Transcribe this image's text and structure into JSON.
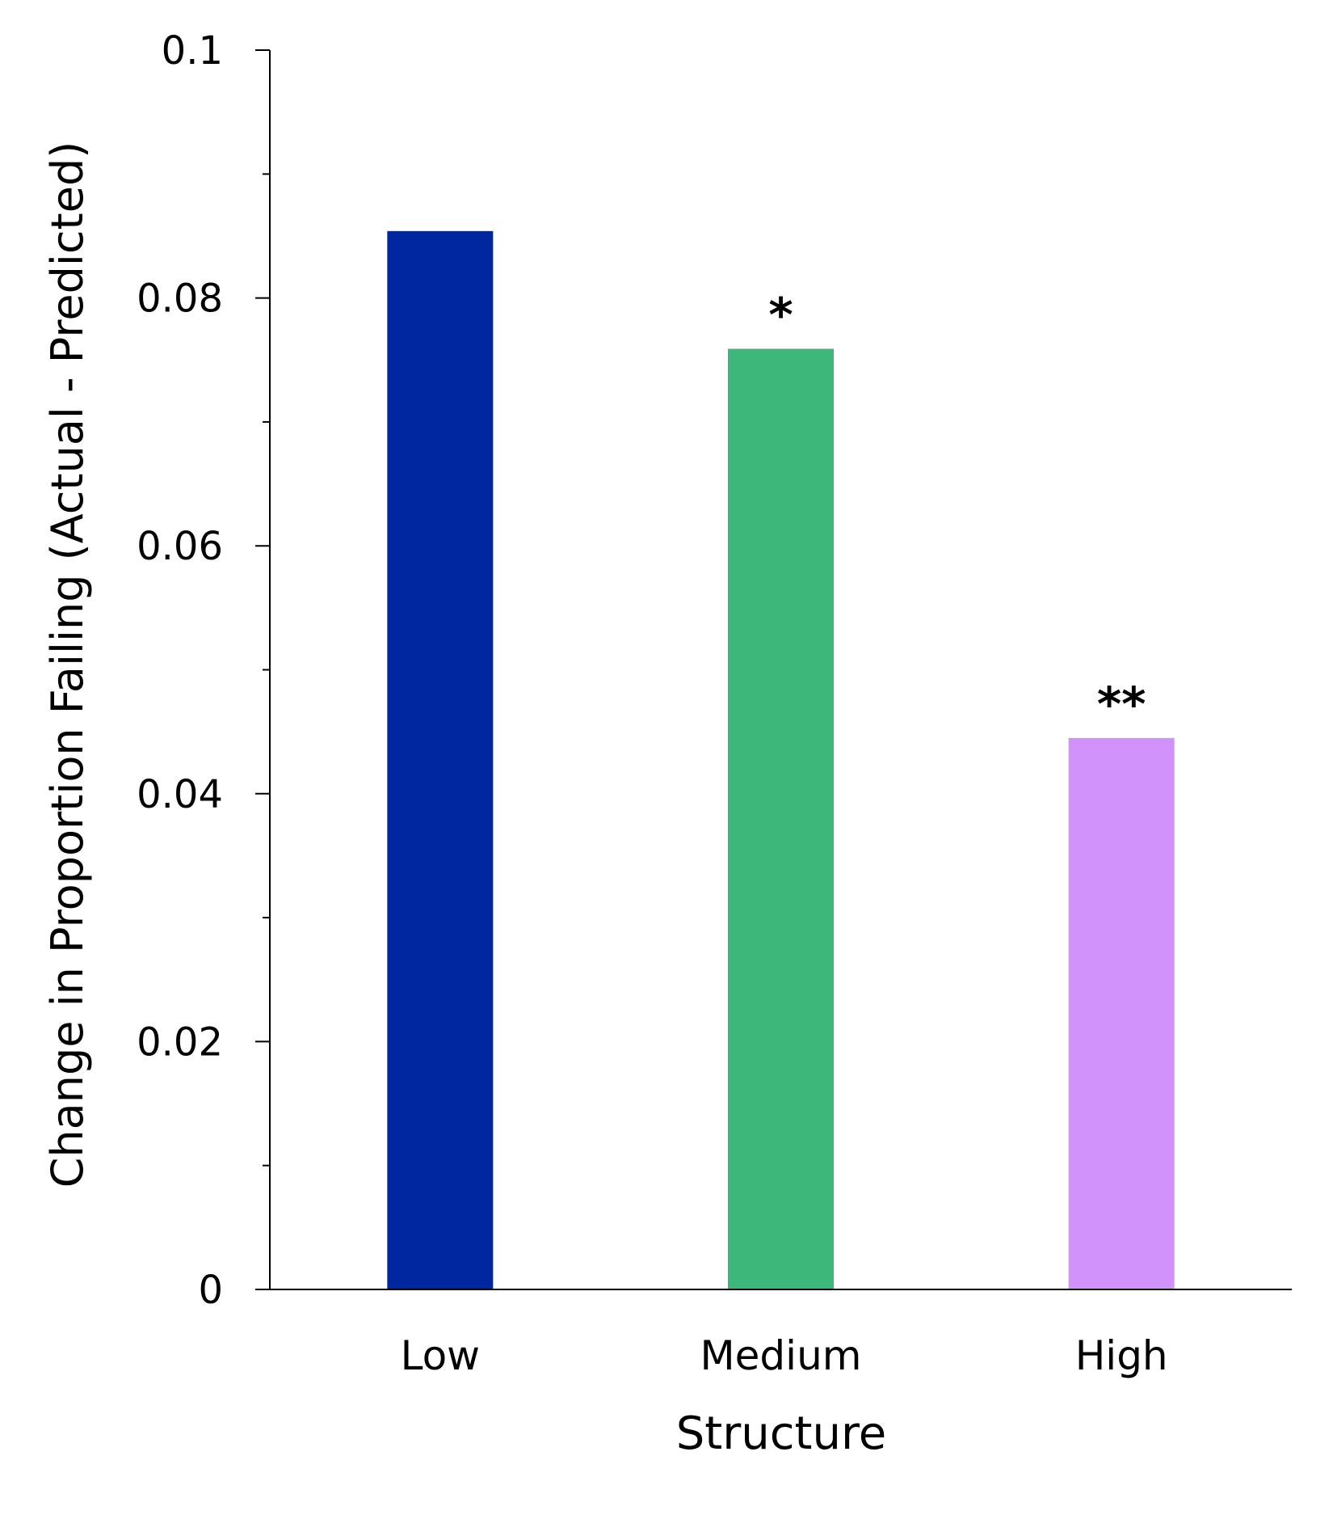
{
  "chart_data": {
    "type": "bar",
    "categories": [
      "Low",
      "Medium",
      "High"
    ],
    "values": [
      0.0854,
      0.0759,
      0.0445
    ],
    "colors": [
      "#0026A0",
      "#3DB77A",
      "#D193FB"
    ],
    "annotations": [
      "",
      "*",
      "**"
    ],
    "title": "",
    "xlabel": "Structure",
    "ylabel": "Change in Proportion Failing (Actual - Predicted)",
    "ylim": [
      0,
      0.1
    ],
    "yticks": [
      0,
      0.02,
      0.04,
      0.06,
      0.08,
      0.1
    ],
    "ytick_labels": [
      "0",
      "0.02",
      "0.04",
      "0.06",
      "0.08",
      "0.1"
    ],
    "minor_ticks": [
      0.01,
      0.03,
      0.05,
      0.07,
      0.09
    ],
    "grid": false,
    "legend": "none"
  }
}
